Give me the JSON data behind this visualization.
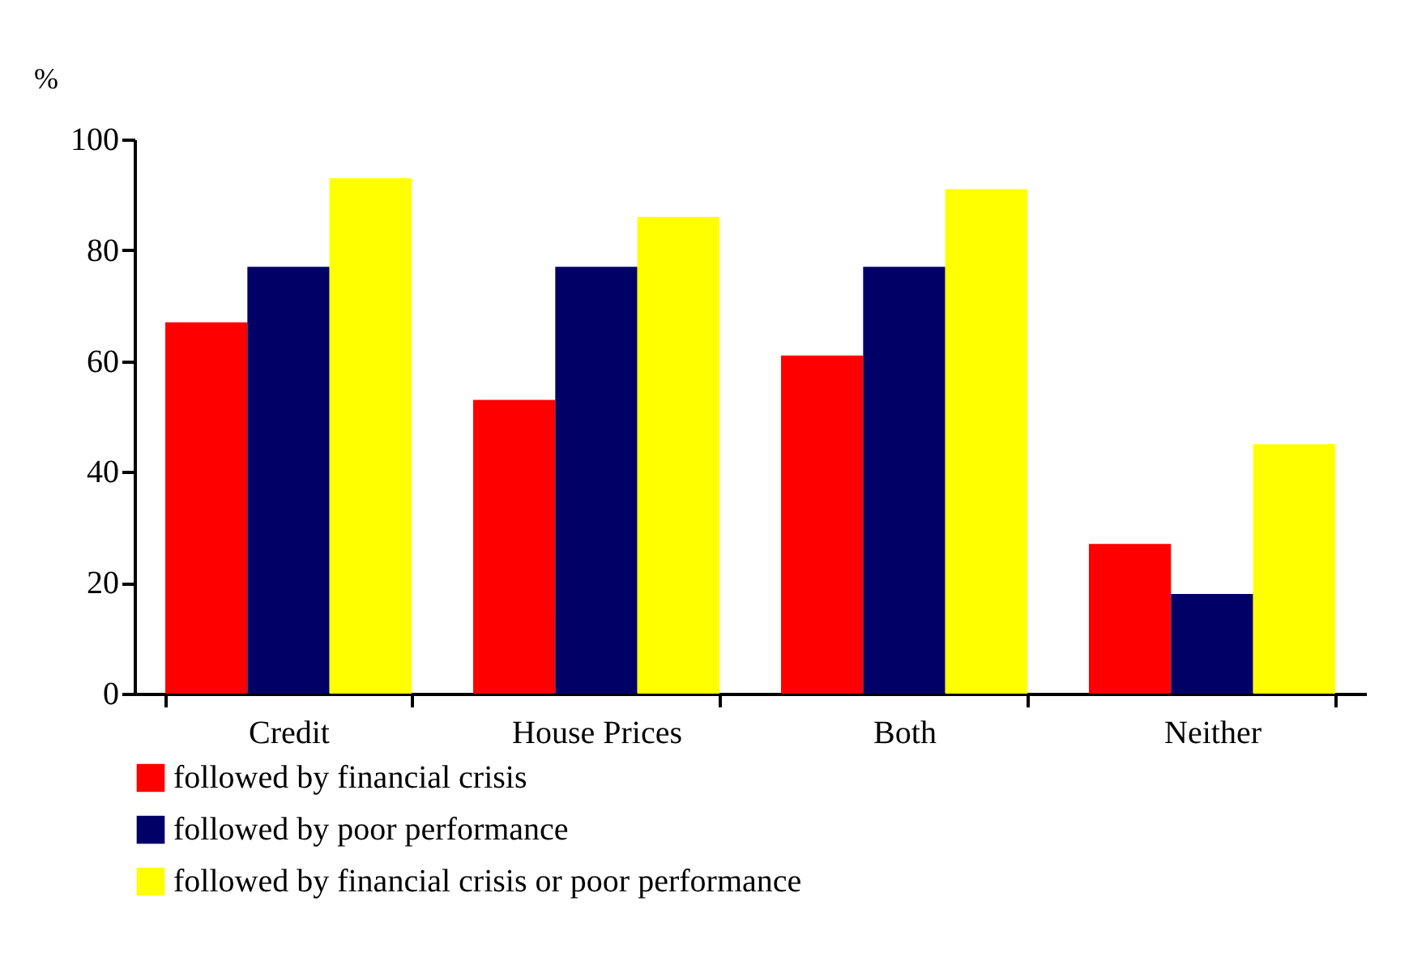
{
  "chart_data": {
    "type": "bar",
    "ylabel": "%",
    "categories": [
      "Credit",
      "House Prices",
      "Both",
      "Neither"
    ],
    "series": [
      {
        "name": "followed by financial crisis",
        "color": "#ff0000",
        "values": [
          67,
          53,
          61,
          27
        ]
      },
      {
        "name": "followed by poor performance",
        "color": "#000066",
        "values": [
          77,
          77,
          77,
          18
        ]
      },
      {
        "name": "followed by financial crisis or poor performance",
        "color": "#ffff00",
        "values": [
          93,
          86,
          91,
          45
        ]
      }
    ],
    "ylim": [
      0,
      100
    ],
    "yticks": [
      0,
      20,
      40,
      60,
      80,
      100
    ],
    "grid": false,
    "legend": "bottom"
  }
}
